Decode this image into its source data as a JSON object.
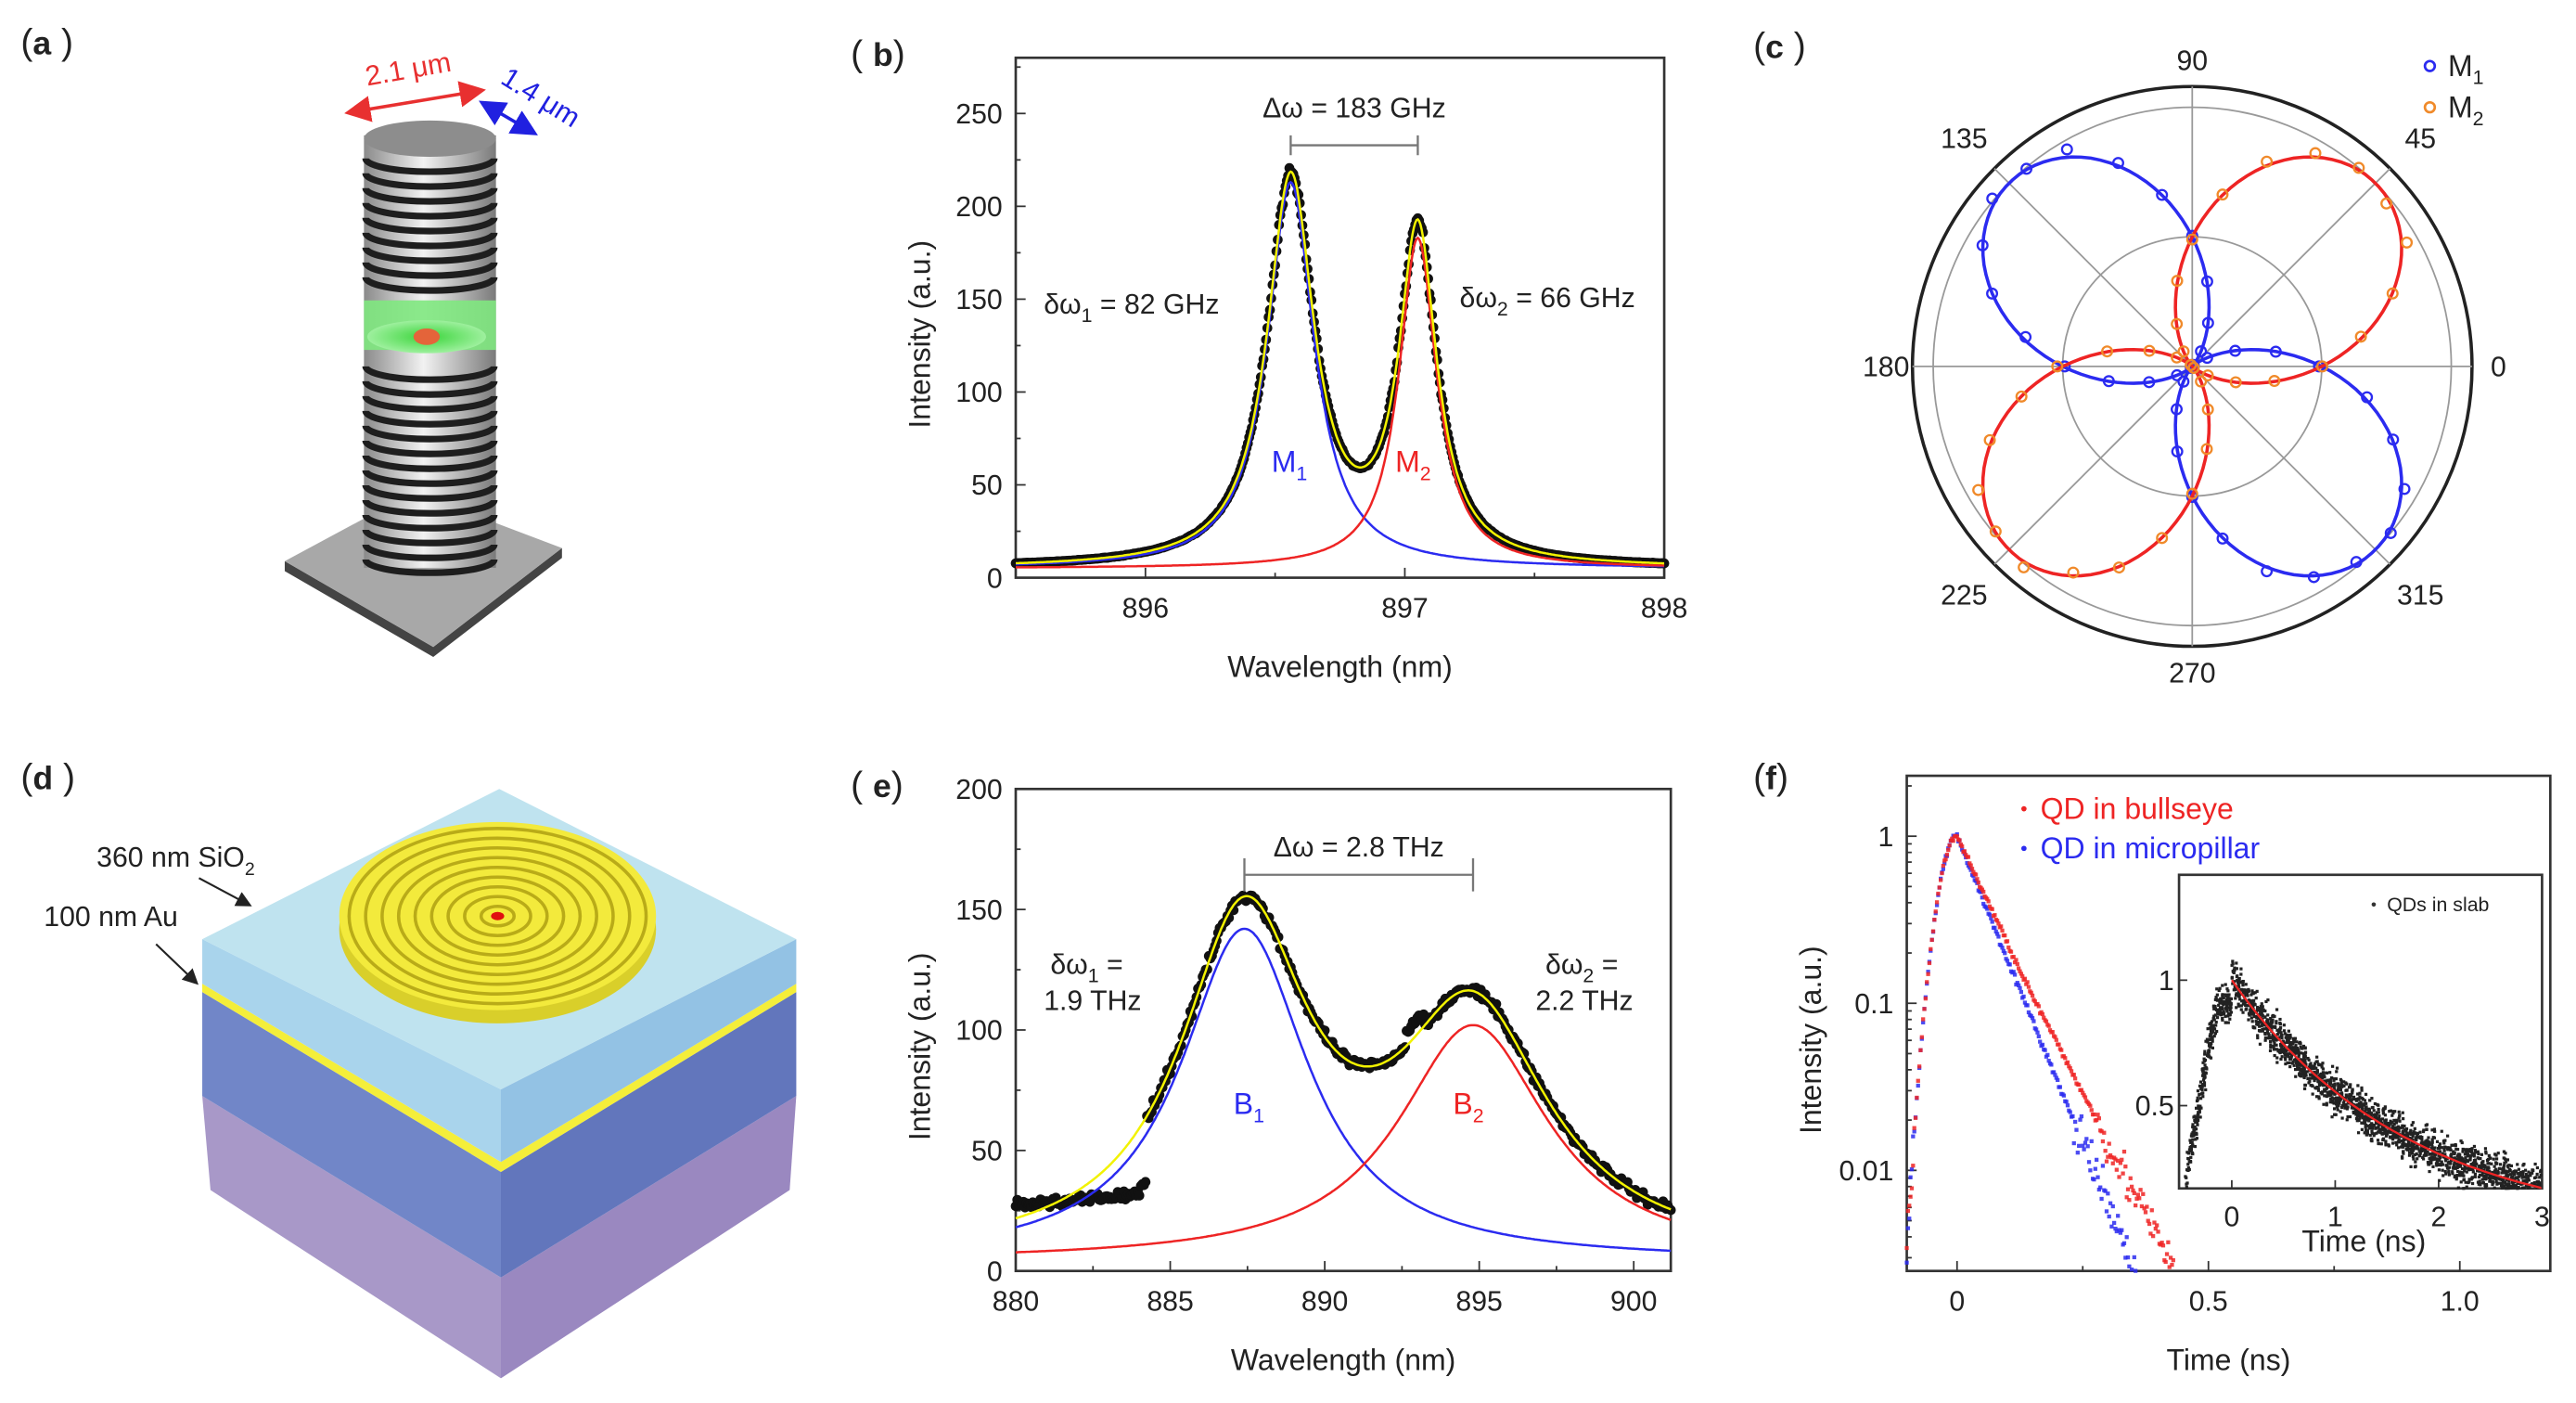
{
  "panels": {
    "a": {
      "label": "a",
      "dim_diameter": "2.1 μm",
      "dim_minor": "1.4 μm"
    },
    "b": {
      "label": "b"
    },
    "c": {
      "label": "c"
    },
    "d": {
      "label": "d",
      "layer_sio2": "360 nm SiO",
      "layer_sio2_sub": "2",
      "layer_au": "100 nm Au"
    },
    "e": {
      "label": "e"
    },
    "f": {
      "label": "f"
    }
  },
  "colors": {
    "blue": "#2b2bf0",
    "red": "#ee2424",
    "yellow": "#f2f200",
    "orange": "#f08a2a",
    "data": "#111111"
  },
  "chart_data": [
    {
      "panel": "b",
      "type": "line",
      "xlabel": "Wavelength (nm)",
      "ylabel": "Intensity (a.u.)",
      "xlim": [
        895.5,
        898
      ],
      "ylim": [
        0,
        280
      ],
      "xticks": [
        896,
        897,
        898
      ],
      "xtick_labels": [
        "896",
        "897",
        "898"
      ],
      "yticks": [
        0,
        50,
        100,
        150,
        200,
        250
      ],
      "ytick_labels": [
        "0",
        "50",
        "100",
        "150",
        "200",
        "250"
      ],
      "baseline": 5,
      "series": [
        {
          "name": "M1",
          "label": "M",
          "sub": "1",
          "model": "lorentzian",
          "center": 896.56,
          "fwhm": 0.22,
          "amplitude": 208
        },
        {
          "name": "M2",
          "label": "M",
          "sub": "2",
          "model": "lorentzian",
          "center": 897.05,
          "fwhm": 0.177,
          "amplitude": 178
        }
      ],
      "annotations": {
        "delta": "Δω = 183 GHz",
        "width1_pre": "δω",
        "width1_sub": "1",
        "width1_post": " = 82 GHz",
        "width2_pre": "δω",
        "width2_sub": "2",
        "width2_post": " = 66 GHz"
      }
    },
    {
      "panel": "c",
      "type": "polar",
      "angle_labels": [
        "0",
        "45",
        "90",
        "135",
        "180",
        "225",
        "270",
        "315"
      ],
      "angles": [
        0,
        45,
        90,
        135,
        180,
        225,
        270,
        315
      ],
      "rlim": [
        0,
        1.08
      ],
      "grid_circles": [
        0.5,
        1.0
      ],
      "series": [
        {
          "name": "M1",
          "label": "M",
          "sub": "1",
          "lobe_angle": 135,
          "amplitude": 1.0
        },
        {
          "name": "M2",
          "label": "M",
          "sub": "2",
          "lobe_angle": 45,
          "amplitude": 1.0
        }
      ],
      "legend_position": "top-right"
    },
    {
      "panel": "e",
      "type": "line",
      "xlabel": "Wavelength (nm)",
      "ylabel": "Intensity (a.u.)",
      "xlim": [
        880,
        901.2
      ],
      "ylim": [
        0,
        200
      ],
      "xticks": [
        880,
        885,
        890,
        895,
        900
      ],
      "xtick_labels": [
        "880",
        "885",
        "890",
        "895",
        "900"
      ],
      "yticks": [
        0,
        50,
        100,
        150,
        200
      ],
      "ytick_labels": [
        "0",
        "50",
        "100",
        "150",
        "200"
      ],
      "baseline": 4,
      "series": [
        {
          "name": "B1",
          "label": "B",
          "sub": "1",
          "model": "lorentzian",
          "center": 887.4,
          "fwhm": 5.0,
          "amplitude": 138
        },
        {
          "name": "B2",
          "label": "B",
          "sub": "2",
          "model": "lorentzian",
          "center": 894.8,
          "fwhm": 5.9,
          "amplitude": 98
        }
      ],
      "annotations": {
        "delta": "Δω = 2.8 THz",
        "width1_pre": "δω",
        "width1_sub": "1",
        "width1_eq": " =",
        "width1_val": "1.9 THz",
        "width2_pre": "δω",
        "width2_sub": "2",
        "width2_eq": " =",
        "width2_val": "2.2 THz"
      }
    },
    {
      "panel": "f",
      "type": "scatter",
      "xlabel": "Time (ns)",
      "ylabel": "Intensity (a.u.)",
      "yscale": "log",
      "xlim": [
        -0.1,
        1.18
      ],
      "ylim": [
        0.0025,
        2.3
      ],
      "xticks": [
        0,
        0.5,
        1.0
      ],
      "xtick_labels": [
        "0",
        "0.5",
        "1.0"
      ],
      "yticks": [
        1,
        0.1,
        0.01
      ],
      "ytick_labels": [
        "1",
        "0.1",
        "0.01"
      ],
      "series": [
        {
          "name": "QD in bullseye",
          "decay_ns": 0.068,
          "rise_ns": 0.042
        },
        {
          "name": "QD in micropillar",
          "decay_ns": 0.059,
          "rise_ns": 0.042
        }
      ],
      "legend_position": "top",
      "inset": {
        "xlabel": "Time (ns)",
        "xlim": [
          -0.51,
          3
        ],
        "ylim": [
          0.17,
          1.42
        ],
        "xticks": [
          0,
          1,
          2,
          3
        ],
        "xtick_labels": [
          "0",
          "1",
          "2",
          "3"
        ],
        "yticks": [
          1,
          0.5
        ],
        "ytick_labels": [
          "1",
          "0.5"
        ],
        "series": [
          {
            "name": "QDs in slab",
            "decay_ns": 1.7
          }
        ],
        "legend_position": "top-right"
      }
    }
  ]
}
